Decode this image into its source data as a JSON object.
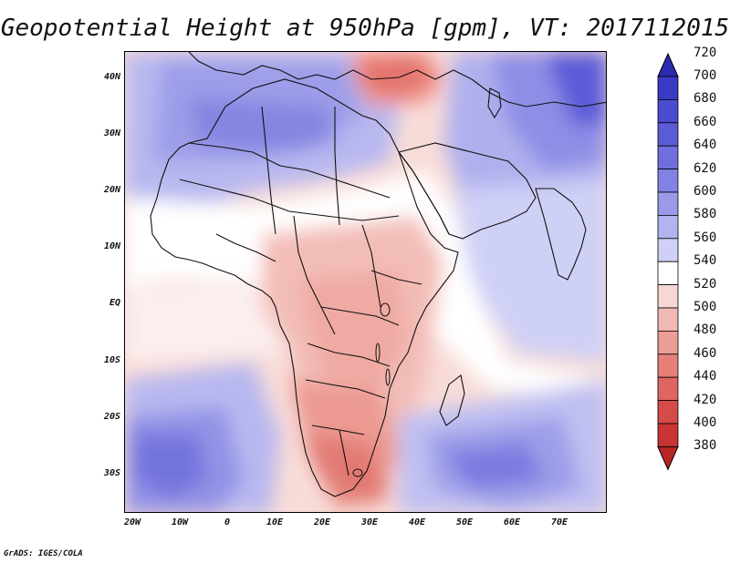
{
  "title": "Geopotential Height at 950hPa [gpm], VT: 2017112015",
  "footer": "GrADS: IGES/COLA",
  "lat_labels": [
    "40N",
    "30N",
    "20N",
    "10N",
    "EQ",
    "10S",
    "20S",
    "30S"
  ],
  "lon_labels": [
    "20W",
    "10W",
    "0",
    "10E",
    "20E",
    "30E",
    "40E",
    "50E",
    "60E",
    "70E"
  ],
  "colorbar": {
    "levels": [
      720,
      700,
      680,
      660,
      640,
      620,
      600,
      580,
      560,
      540,
      520,
      500,
      480,
      460,
      440,
      420,
      400,
      380
    ],
    "colors": [
      "#2b2bb0",
      "#3a3ac4",
      "#4b4bd0",
      "#5b5bd8",
      "#6e6edf",
      "#8282e4",
      "#9a9ae9",
      "#b3b3ef",
      "#cfd0f6",
      "#ffffff",
      "#f7d6d3",
      "#f2b9b4",
      "#ec9d96",
      "#e68079",
      "#df6560",
      "#d64a47",
      "#c83434",
      "#b82323"
    ]
  },
  "colors": {
    "border": "#000000",
    "coast": "#111111"
  }
}
